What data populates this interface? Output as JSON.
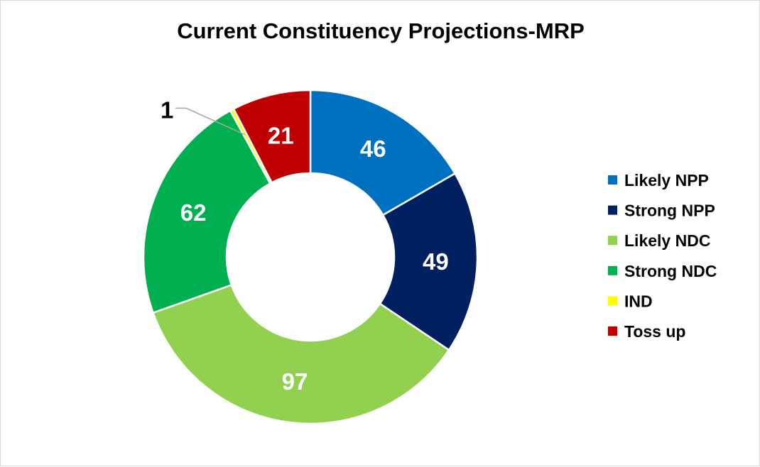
{
  "chart_data": {
    "type": "pie",
    "variant": "doughnut",
    "title": "Current Constituency Projections-MRP",
    "legend_position": "right",
    "series": [
      {
        "name": "Likely NPP",
        "value": 46,
        "label": "46",
        "color": "#0070c0",
        "label_color": "#ffffff"
      },
      {
        "name": "Strong NPP",
        "value": 49,
        "label": "49",
        "color": "#002060",
        "label_color": "#ffffff"
      },
      {
        "name": "Likely NDC",
        "value": 97,
        "label": "97",
        "color": "#92d050",
        "label_color": "#ffffff"
      },
      {
        "name": "Strong NDC",
        "value": 62,
        "label": "62",
        "color": "#00b050",
        "label_color": "#ffffff"
      },
      {
        "name": "IND",
        "value": 1,
        "label": "1",
        "color": "#ffff00",
        "label_color": "#000000"
      },
      {
        "name": "Toss up",
        "value": 21,
        "label": "21",
        "color": "#c00000",
        "label_color": "#ffffff"
      }
    ]
  }
}
